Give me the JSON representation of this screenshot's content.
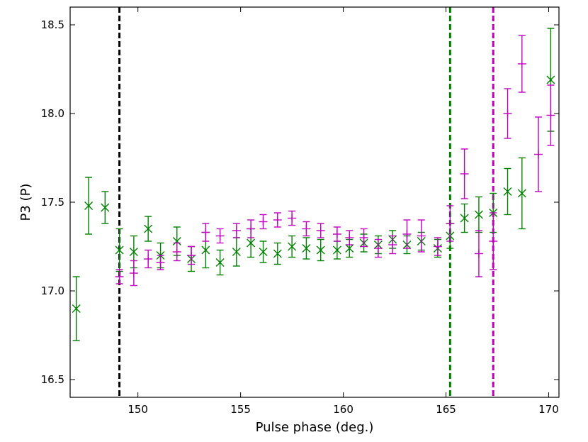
{
  "chart_data": {
    "type": "scatter",
    "title": "",
    "xlabel": "Pulse phase (deg.)",
    "ylabel": "P3 (P)",
    "xlim": [
      146.7,
      170.5
    ],
    "ylim": [
      16.4,
      18.6
    ],
    "grid": false,
    "x_ticks": [
      150,
      155,
      160,
      165,
      170
    ],
    "y_ticks": [
      16.5,
      17.0,
      17.5,
      18.0,
      18.5
    ],
    "x_tick_labels": [
      "150",
      "155",
      "160",
      "165",
      "170"
    ],
    "y_tick_labels": [
      "16.5",
      "17.0",
      "17.5",
      "18.0",
      "18.5"
    ],
    "vlines": [
      {
        "x": 149.1,
        "color": "#000000"
      },
      {
        "x": 165.2,
        "color": "#008000"
      },
      {
        "x": 167.3,
        "color": "#bf00bf"
      }
    ],
    "series": [
      {
        "marker": "x",
        "color": "#008000",
        "points": [
          {
            "x": 147.0,
            "y": 16.9,
            "err": 0.18
          },
          {
            "x": 147.6,
            "y": 17.48,
            "err": 0.16
          },
          {
            "x": 148.4,
            "y": 17.47,
            "err": 0.09
          },
          {
            "x": 149.1,
            "y": 17.23,
            "err": 0.12
          },
          {
            "x": 149.8,
            "y": 17.22,
            "err": 0.09
          },
          {
            "x": 150.5,
            "y": 17.35,
            "err": 0.07
          },
          {
            "x": 151.1,
            "y": 17.2,
            "err": 0.07
          },
          {
            "x": 151.9,
            "y": 17.28,
            "err": 0.08
          },
          {
            "x": 152.6,
            "y": 17.18,
            "err": 0.07
          },
          {
            "x": 153.3,
            "y": 17.23,
            "err": 0.1
          },
          {
            "x": 154.0,
            "y": 17.16,
            "err": 0.07
          },
          {
            "x": 154.8,
            "y": 17.22,
            "err": 0.08
          },
          {
            "x": 155.5,
            "y": 17.27,
            "err": 0.08
          },
          {
            "x": 156.1,
            "y": 17.22,
            "err": 0.06
          },
          {
            "x": 156.8,
            "y": 17.21,
            "err": 0.06
          },
          {
            "x": 157.5,
            "y": 17.25,
            "err": 0.06
          },
          {
            "x": 158.2,
            "y": 17.24,
            "err": 0.06
          },
          {
            "x": 158.9,
            "y": 17.23,
            "err": 0.06
          },
          {
            "x": 159.7,
            "y": 17.23,
            "err": 0.05
          },
          {
            "x": 160.3,
            "y": 17.24,
            "err": 0.05
          },
          {
            "x": 161.0,
            "y": 17.27,
            "err": 0.05
          },
          {
            "x": 161.7,
            "y": 17.26,
            "err": 0.05
          },
          {
            "x": 162.4,
            "y": 17.29,
            "err": 0.05
          },
          {
            "x": 163.1,
            "y": 17.26,
            "err": 0.05
          },
          {
            "x": 163.8,
            "y": 17.28,
            "err": 0.05
          },
          {
            "x": 164.6,
            "y": 17.24,
            "err": 0.05
          },
          {
            "x": 165.2,
            "y": 17.31,
            "err": 0.07
          },
          {
            "x": 165.9,
            "y": 17.41,
            "err": 0.08
          },
          {
            "x": 166.6,
            "y": 17.43,
            "err": 0.1
          },
          {
            "x": 167.3,
            "y": 17.44,
            "err": 0.11
          },
          {
            "x": 168.0,
            "y": 17.56,
            "err": 0.13
          },
          {
            "x": 168.7,
            "y": 17.55,
            "err": 0.2
          },
          {
            "x": 170.1,
            "y": 18.19,
            "err": 0.29
          }
        ]
      },
      {
        "marker": "+",
        "color": "#bf00bf",
        "points": [
          {
            "x": 149.1,
            "y": 17.08,
            "err": 0.04
          },
          {
            "x": 149.8,
            "y": 17.1,
            "err": 0.07
          },
          {
            "x": 150.5,
            "y": 17.18,
            "err": 0.05
          },
          {
            "x": 151.1,
            "y": 17.16,
            "err": 0.04
          },
          {
            "x": 151.9,
            "y": 17.22,
            "err": 0.05
          },
          {
            "x": 152.6,
            "y": 17.2,
            "err": 0.05
          },
          {
            "x": 153.3,
            "y": 17.33,
            "err": 0.05
          },
          {
            "x": 154.0,
            "y": 17.31,
            "err": 0.04
          },
          {
            "x": 154.8,
            "y": 17.34,
            "err": 0.04
          },
          {
            "x": 155.5,
            "y": 17.35,
            "err": 0.05
          },
          {
            "x": 156.1,
            "y": 17.39,
            "err": 0.04
          },
          {
            "x": 156.8,
            "y": 17.4,
            "err": 0.04
          },
          {
            "x": 157.5,
            "y": 17.41,
            "err": 0.04
          },
          {
            "x": 158.2,
            "y": 17.35,
            "err": 0.04
          },
          {
            "x": 158.9,
            "y": 17.34,
            "err": 0.04
          },
          {
            "x": 159.7,
            "y": 17.32,
            "err": 0.04
          },
          {
            "x": 160.3,
            "y": 17.3,
            "err": 0.04
          },
          {
            "x": 161.0,
            "y": 17.3,
            "err": 0.05
          },
          {
            "x": 161.7,
            "y": 17.24,
            "err": 0.05
          },
          {
            "x": 162.4,
            "y": 17.26,
            "err": 0.05
          },
          {
            "x": 163.1,
            "y": 17.32,
            "err": 0.08
          },
          {
            "x": 163.8,
            "y": 17.31,
            "err": 0.09
          },
          {
            "x": 164.6,
            "y": 17.25,
            "err": 0.05
          },
          {
            "x": 165.2,
            "y": 17.38,
            "err": 0.1
          },
          {
            "x": 165.9,
            "y": 17.66,
            "err": 0.14
          },
          {
            "x": 166.6,
            "y": 17.21,
            "err": 0.13
          },
          {
            "x": 167.3,
            "y": 17.28,
            "err": 0.16
          },
          {
            "x": 168.0,
            "y": 18.0,
            "err": 0.14
          },
          {
            "x": 168.7,
            "y": 18.28,
            "err": 0.16
          },
          {
            "x": 169.5,
            "y": 17.77,
            "err": 0.21
          },
          {
            "x": 170.1,
            "y": 17.99,
            "err": 0.17
          }
        ]
      }
    ]
  }
}
